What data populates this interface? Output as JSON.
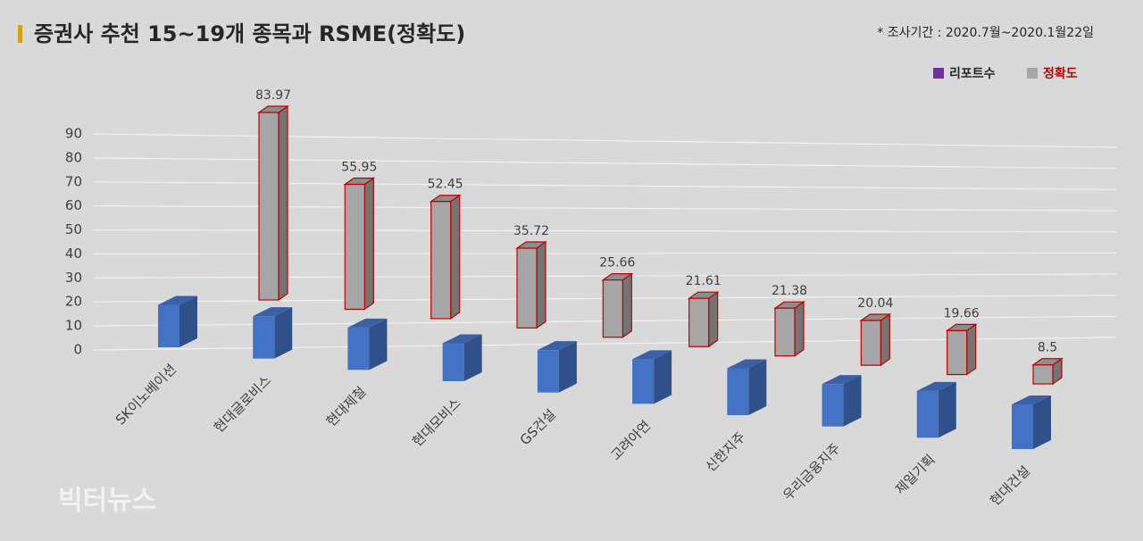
{
  "chart_data": {
    "type": "bar3d",
    "title": "증권사 추천 15~19개 종목과 RSME(정확도)",
    "subtitle": "* 조사기간 : 2020.7월~2020.1월22일",
    "watermark": "빅터뉴스",
    "categories": [
      "SK이노베이션",
      "현대글로비스",
      "현대제철",
      "현대모비스",
      "GS건설",
      "고려아연",
      "신한지주",
      "우리금융지주",
      "제일기획",
      "현대건설"
    ],
    "series": [
      {
        "name": "리포트수",
        "color": "#4472c4",
        "legend_color": "#7030a0",
        "values": [
          19,
          19,
          19,
          17,
          19,
          20,
          21,
          19,
          21,
          20
        ]
      },
      {
        "name": "정확도",
        "color": "#a6a6a6",
        "legend_color": "#a6a6a6",
        "legend_text_color": "#c00000",
        "values": [
          83.97,
          55.95,
          52.45,
          35.72,
          25.66,
          21.61,
          21.38,
          20.04,
          19.66,
          8.5
        ]
      }
    ],
    "ylim": [
      0,
      90
    ],
    "yticks": [
      0,
      10,
      20,
      30,
      40,
      50,
      60,
      70,
      80,
      90
    ],
    "grid": true
  }
}
